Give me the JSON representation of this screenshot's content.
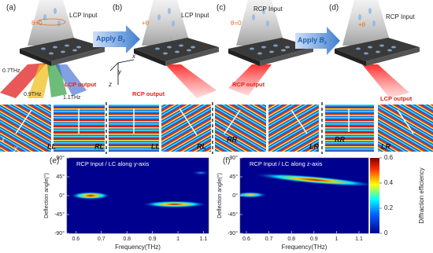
{
  "panels": {
    "a": {
      "label": "(a)",
      "input": "LCP Input",
      "angle": "θ=0",
      "freqs": [
        "0.7THz",
        "0.9THz",
        "1.1THz"
      ],
      "output": "LCP output",
      "axes": [
        "x",
        "y",
        "z"
      ]
    },
    "b": {
      "label": "(b)",
      "input": "LCP Input",
      "angle": "+θ",
      "output": "RCP output"
    },
    "c": {
      "label": "(c)",
      "input": "RCP Input",
      "angle": "θ=0",
      "output": "RCP output"
    },
    "d": {
      "label": "(d)",
      "input": "RCP Input",
      "angle": "+θ",
      "output": "LCP output"
    },
    "arrows": [
      {
        "text": "Apply",
        "field": "B",
        "sub": "z"
      },
      {
        "text": "Apply",
        "field": "B",
        "sub": "z"
      }
    ]
  },
  "field_maps": {
    "labels": [
      "LL",
      "RL",
      "LL",
      "RL",
      "RR",
      "LR",
      "RR",
      "LR"
    ],
    "axes": [
      "z",
      "y"
    ]
  },
  "chart_data": [
    {
      "type": "heatmap",
      "panel_label": "(e)",
      "title": "RCP Input / LC along y-axis",
      "x_label": "Frequency(THz)",
      "y_label": "Deflection angle(°)",
      "xlim": [
        0.565,
        1.12
      ],
      "xticks": [
        0.6,
        0.7,
        0.8,
        0.9,
        1,
        1.1
      ],
      "ylim": [
        -90,
        90
      ],
      "yticks": [
        {
          "value": 90,
          "label": "90°"
        },
        {
          "value": 45,
          "label": "45°"
        },
        {
          "value": 0,
          "label": "0°"
        },
        {
          "value": -45,
          "label": "-45°"
        },
        {
          "value": -90,
          "label": "-90°"
        }
      ]
    },
    {
      "type": "heatmap",
      "panel_label": "(f)",
      "title": "RCP Input / LC along z-axis",
      "x_label": "Frequency(THz)",
      "y_label": "Deflection angle(°)",
      "xlim": [
        0.572,
        1.142
      ],
      "xticks": [
        0.6,
        0.7,
        0.8,
        0.9,
        1,
        1.1
      ],
      "ylim": [
        -90,
        90
      ],
      "yticks": [
        {
          "value": 90,
          "label": "90°"
        },
        {
          "value": 45,
          "label": "45°"
        },
        {
          "value": 0,
          "label": "0°"
        },
        {
          "value": -45,
          "label": "-45°"
        },
        {
          "value": -90,
          "label": "-90°"
        }
      ],
      "colorbar": {
        "label": "Diffraction efficiency",
        "lim": [
          0,
          0.6
        ],
        "ticks": [
          0,
          0.2,
          0.4,
          0.6
        ]
      }
    }
  ]
}
